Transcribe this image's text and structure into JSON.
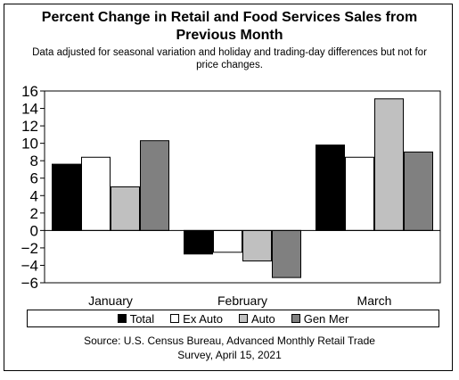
{
  "chart_data": {
    "type": "bar",
    "title": "Percent Change in Retail and Food Services Sales from Previous Month",
    "subtitle": "Data adjusted for seasonal variation and holiday and trading-day differences but not for price changes.",
    "categories": [
      "January",
      "February",
      "March"
    ],
    "series": [
      {
        "name": "Total",
        "color": "#000000",
        "values": [
          7.6,
          -2.7,
          9.8
        ]
      },
      {
        "name": "Ex Auto",
        "color": "#ffffff",
        "values": [
          8.4,
          -2.5,
          8.4
        ]
      },
      {
        "name": "Auto",
        "color": "#c0c0c0",
        "values": [
          5.0,
          -3.5,
          15.1
        ]
      },
      {
        "name": "Gen Mer",
        "color": "#808080",
        "values": [
          10.3,
          -5.4,
          9.0
        ]
      }
    ],
    "ylim": [
      -6,
      16
    ],
    "yticks": [
      -6,
      -4,
      -2,
      0,
      2,
      4,
      6,
      8,
      10,
      12,
      14,
      16
    ],
    "xlabel": "",
    "ylabel": "",
    "legend_position": "bottom",
    "grid": false
  },
  "source": "Source: U.S. Census Bureau, Advanced Monthly Retail Trade Survey, April 15, 2021"
}
